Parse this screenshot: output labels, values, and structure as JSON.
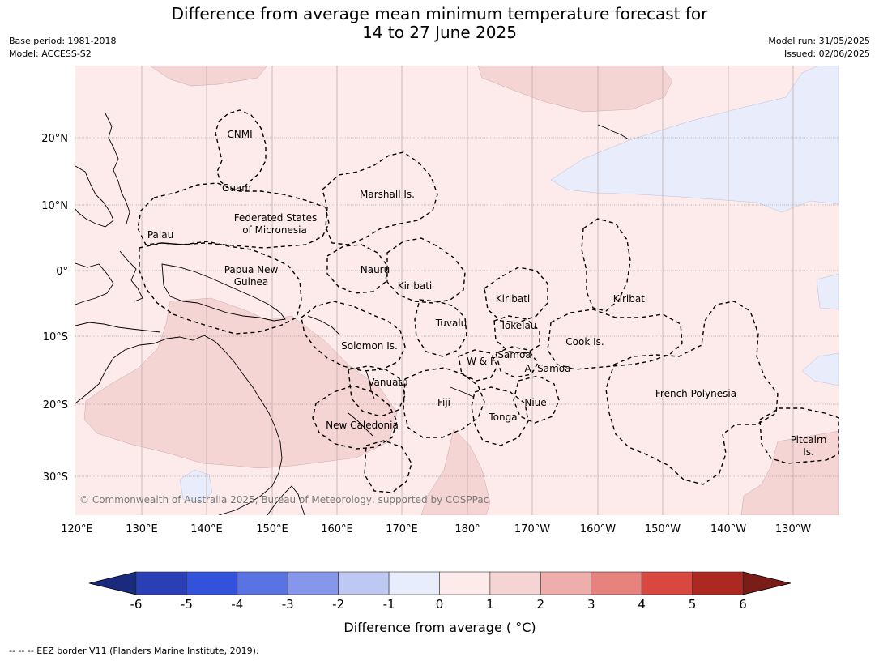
{
  "title_line1": "Difference from average mean minimum temperature forecast for",
  "title_line2": "14 to 27 June 2025",
  "meta_left": {
    "base_period": "Base period: 1981-2018",
    "model": "Model: ACCESS-S2"
  },
  "meta_right": {
    "model_run": "Model run: 31/05/2025",
    "issued": "Issued: 02/06/2025"
  },
  "lat_labels": [
    "20°N",
    "10°N",
    "0°",
    "10°S",
    "20°S",
    "30°S"
  ],
  "lon_labels": [
    "120°E",
    "130°E",
    "140°E",
    "150°E",
    "160°E",
    "170°E",
    "180°",
    "170°W",
    "160°W",
    "150°W",
    "140°W",
    "130°W"
  ],
  "regions": [
    {
      "name": "CNMI"
    },
    {
      "name": "Guam"
    },
    {
      "name": "Marshall Is."
    },
    {
      "name": "Federated States"
    },
    {
      "name": "of Micronesia"
    },
    {
      "name": "Palau"
    },
    {
      "name": "Papua New"
    },
    {
      "name": "Guinea"
    },
    {
      "name": "Nauru"
    },
    {
      "name": "Kiribati"
    },
    {
      "name": "Kiribati"
    },
    {
      "name": "Kiribati"
    },
    {
      "name": "Tuvalu"
    },
    {
      "name": "Tokelau"
    },
    {
      "name": "Solomon Is."
    },
    {
      "name": "Cook Is."
    },
    {
      "name": "Samoa"
    },
    {
      "name": "W & F"
    },
    {
      "name": "A. Samoa"
    },
    {
      "name": "Vanuatu"
    },
    {
      "name": "Fiji"
    },
    {
      "name": "Niue"
    },
    {
      "name": "French Polynesia"
    },
    {
      "name": "Tonga"
    },
    {
      "name": "New Caledonia"
    },
    {
      "name": "Pitcairn"
    },
    {
      "name": "Is."
    }
  ],
  "credit": "© Commonwealth of Australia 2025, Bureau of Meteorology, supported by COSPPac",
  "colorbar": {
    "ticks": [
      "-6",
      "-5",
      "-4",
      "-3",
      "-2",
      "-1",
      "0",
      "1",
      "2",
      "3",
      "4",
      "5",
      "6"
    ],
    "colors": [
      "#1a2a7c",
      "#2a3fb5",
      "#3252de",
      "#5a73e3",
      "#8596eb",
      "#bec8f3",
      "#e8ecfb",
      "#fcebea",
      "#f5d5d3",
      "#efaeab",
      "#e6837e",
      "#d9473f",
      "#ad2820",
      "#7a1d18"
    ],
    "label": "Difference from average ( °C)"
  },
  "footer": "--  --  -- EEZ border V11 (Flanders Marine Institute, 2019)."
}
